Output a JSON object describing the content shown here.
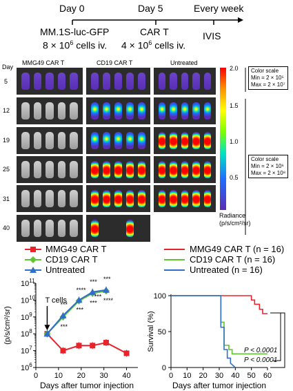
{
  "timeline": {
    "day0": "Day 0",
    "day5": "Day 5",
    "every_week": "Every week",
    "cells_line1": "MM.1S-luc-GFP",
    "cells_line2": "8 × 10",
    "cells_exp": "6",
    "cells_tail": " cells iv.",
    "cart_line1": "CAR T",
    "cart_line2": "4 × 10",
    "cart_exp": "6",
    "cart_tail": " cells iv.",
    "ivis": "IVIS"
  },
  "imaging": {
    "day_label": "Day",
    "days": [
      "5",
      "12",
      "19",
      "25",
      "31",
      "40"
    ],
    "columns": [
      "MMG49 CAR T",
      "CD19 CAR T",
      "Untreated"
    ],
    "colorbar_ticks": [
      "2.0",
      "1.5",
      "1.0",
      "0.5"
    ],
    "radiance_label": "Radiance",
    "radiance_unit": "(p/s/cm²/sr)",
    "scale1": {
      "title": "Color scale",
      "min": "Min = 2 × 10⁵",
      "max": "Max = 2 × 10⁷"
    },
    "scale2": {
      "title": "Color scale",
      "min": "Min = 2 × 10⁶",
      "max": "Max = 2 × 10⁸"
    }
  },
  "legend_left": [
    "MMG49 CAR T",
    "CD19 CAR T",
    "Untreated"
  ],
  "legend_right": [
    "MMG49 CAR T (n = 16)",
    "CD19 CAR T (n = 16)",
    "Untreated (n = 16)"
  ],
  "colors": {
    "mmg49": "#e8232a",
    "cd19": "#5ec42f",
    "untreated": "#2f6fc8"
  },
  "chart_data": [
    {
      "type": "line",
      "ylabel": "(p/s/cm²/sr)",
      "xlabel": "Days after tumor injection",
      "log_y": true,
      "ylim": [
        1000000.0,
        100000000000.0
      ],
      "xlim": [
        0,
        45
      ],
      "x_ticks": [
        0,
        10,
        20,
        30,
        40
      ],
      "annotation": "T cells",
      "series": [
        {
          "name": "MMG49 CAR T",
          "x": [
            5,
            12,
            19,
            25,
            31,
            40
          ],
          "values": [
            100000000.0,
            10000000.0,
            20000000.0,
            20000000.0,
            30000000.0,
            7000000.0
          ]
        },
        {
          "name": "CD19 CAR T",
          "x": [
            5,
            12,
            19,
            25,
            31
          ],
          "values": [
            100000000.0,
            1000000000.0,
            9000000000.0,
            25000000000.0,
            35000000000.0
          ]
        },
        {
          "name": "Untreated",
          "x": [
            5,
            12,
            19,
            25,
            31
          ],
          "values": [
            100000000.0,
            1200000000.0,
            10000000000.0,
            30000000000.0,
            40000000000.0
          ]
        }
      ],
      "significance": [
        "***",
        "***",
        "****",
        "***",
        "***",
        "***",
        "***",
        "****",
        "***"
      ]
    },
    {
      "type": "line",
      "ylabel": "Survival (%)",
      "xlabel": "Days after tumor injection",
      "ylim": [
        0,
        100
      ],
      "xlim": [
        0,
        60
      ],
      "x_ticks": [
        0,
        10,
        20,
        30,
        40,
        50,
        60
      ],
      "y_ticks": [
        0,
        50,
        100
      ],
      "series": [
        {
          "name": "MMG49 CAR T (n = 16)",
          "x": [
            0,
            50,
            50,
            52,
            52,
            55,
            55,
            57,
            57,
            60
          ],
          "values": [
            100,
            100,
            94,
            94,
            88,
            88,
            81,
            81,
            75,
            75
          ]
        },
        {
          "name": "CD19 CAR T (n = 16)",
          "x": [
            0,
            31,
            31,
            33,
            33,
            36,
            36,
            38,
            38,
            60
          ],
          "values": [
            100,
            100,
            63,
            63,
            31,
            31,
            25,
            25,
            19,
            19
          ]
        },
        {
          "name": "Untreated (n = 16)",
          "x": [
            0,
            31,
            31,
            33,
            33,
            35,
            35,
            37,
            37,
            40
          ],
          "values": [
            100,
            100,
            56,
            56,
            25,
            25,
            13,
            13,
            6,
            0
          ]
        }
      ],
      "pvalues": [
        "P < 0.0001",
        "P < 0.0001"
      ]
    }
  ]
}
